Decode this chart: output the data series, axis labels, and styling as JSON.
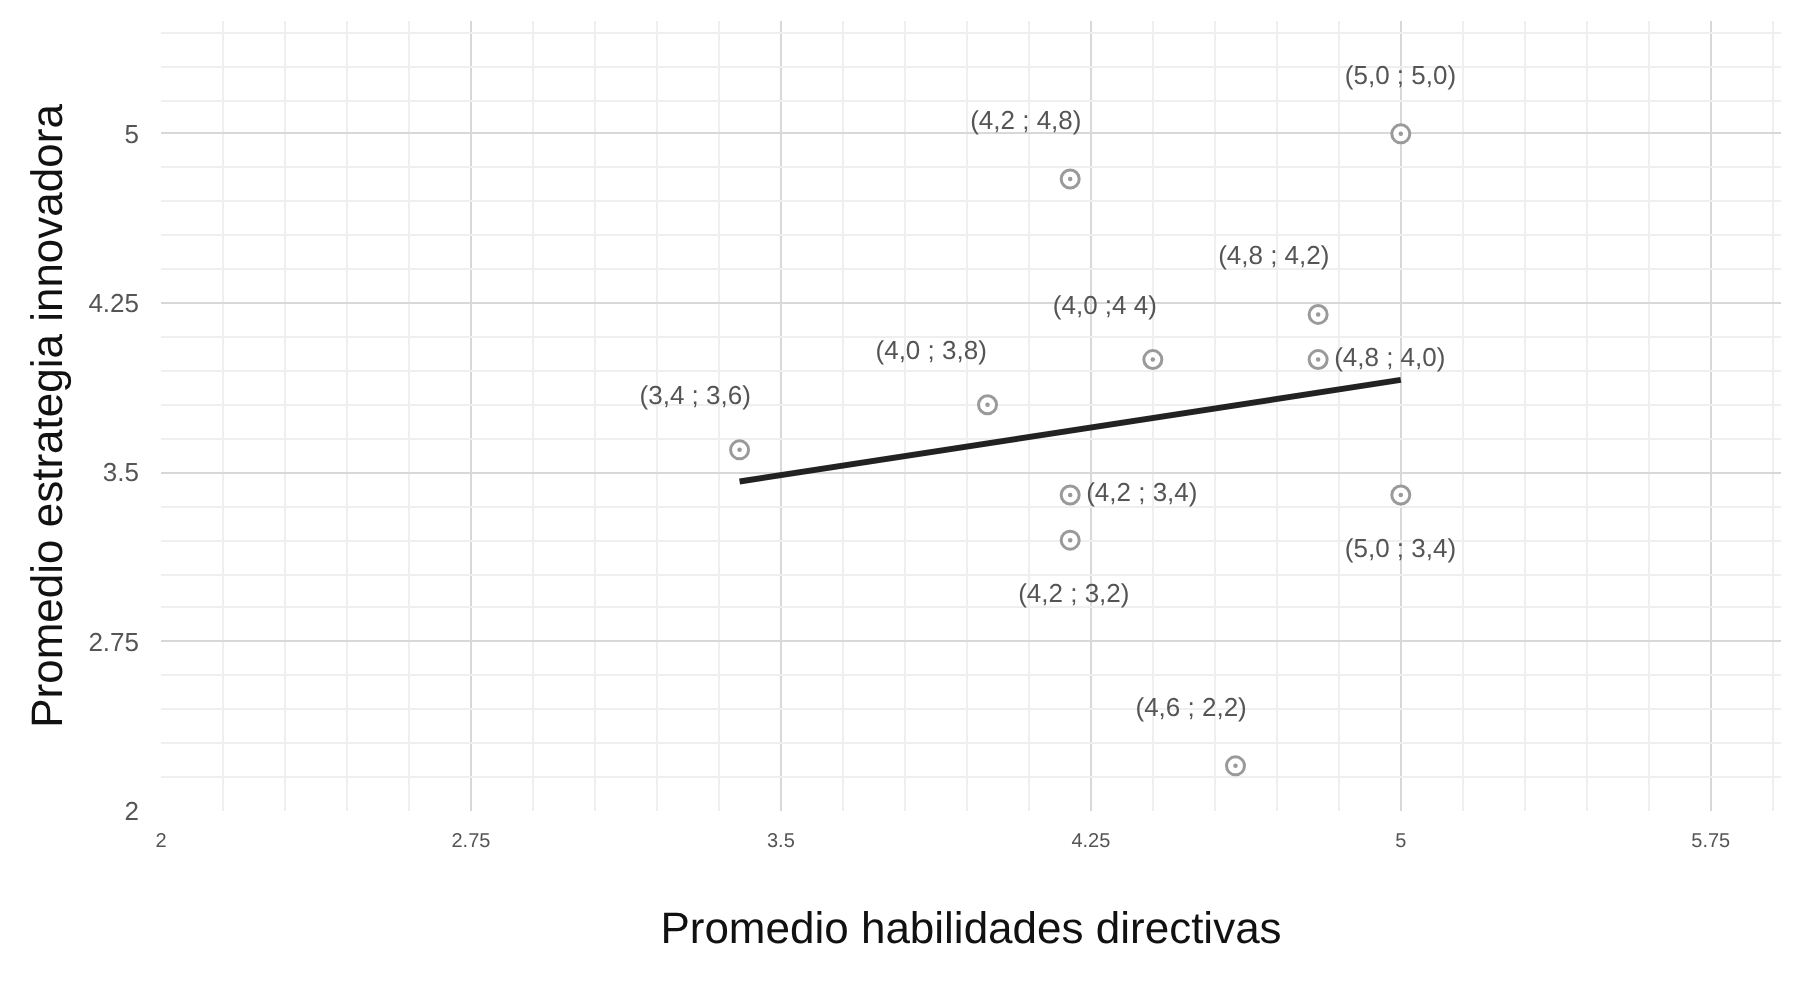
{
  "chart_data": {
    "type": "scatter",
    "xlabel": "Promedio habilidades directivas",
    "ylabel": "Promedio estrategia innovadora",
    "x": [
      3.4,
      4.0,
      4.2,
      4.4,
      4.8,
      4.8,
      5.0,
      4.2,
      4.2,
      5.0,
      4.6
    ],
    "series": [
      {
        "color": "#9a9a9a",
        "marker": "circle",
        "values": [
          3.6,
          3.8,
          4.8,
          4.0,
          4.2,
          4.0,
          5.0,
          3.4,
          3.2,
          3.4,
          2.2
        ]
      },
      {
        "type": "line",
        "color": "#222222",
        "x": [
          3.4,
          5.0
        ],
        "values": [
          3.46,
          3.91
        ],
        "line_style": "solid"
      }
    ],
    "xlim": [
      2,
      5.92
    ],
    "ylim": [
      2,
      5.5
    ],
    "xticks": [
      2,
      2.75,
      3.5,
      4.25,
      5,
      5.75
    ],
    "yticks": [
      2,
      2.75,
      3.5,
      4.25,
      5
    ],
    "grid": true,
    "annotations": [
      {
        "text": "(3,4 ; 3,6)",
        "x": 3.4,
        "y": 3.6
      },
      {
        "text": "(4,0 ; 3,8)",
        "x": 4.0,
        "y": 3.8
      },
      {
        "text": "(4,2 ;  4,8)",
        "x": 4.2,
        "y": 4.8
      },
      {
        "text": "(4,0 ;4 4)",
        "x": 4.4,
        "y": 4.0
      },
      {
        "text": "(4,8 ; 4,2)",
        "x": 4.8,
        "y": 4.2
      },
      {
        "text": "(4,8 ; 4,0)",
        "x": 4.8,
        "y": 4.0
      },
      {
        "text": "(5,0 ; 5,0)",
        "x": 5.0,
        "y": 5.0
      },
      {
        "text": "(4,2 ; 3,4)",
        "x": 4.2,
        "y": 3.4
      },
      {
        "text": "(4,2 ; 3,2)",
        "x": 4.2,
        "y": 3.2
      },
      {
        "text": "(5,0 ; 3,4)",
        "x": 5.0,
        "y": 3.4
      },
      {
        "text": "(4,6 ; 2,2)",
        "x": 4.6,
        "y": 2.2
      }
    ]
  }
}
